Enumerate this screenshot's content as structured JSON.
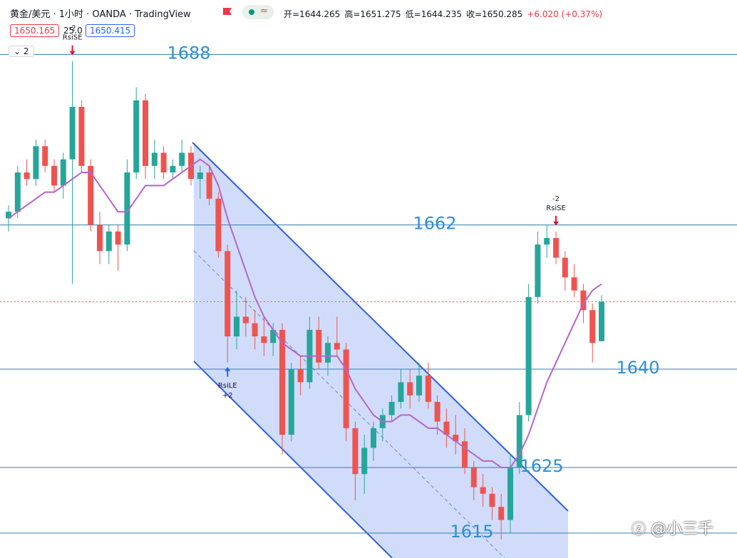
{
  "header": {
    "title": "黄金/美元 · 1小时 · OANDA · TradingView",
    "ohlc": [
      "开=1644.265",
      "高=1651.275",
      "低=1644.235",
      "收=1650.285",
      "+6.020 (+0.37%)"
    ],
    "bid": "1650.165",
    "spread": "25.0",
    "ask": "1650.415",
    "indicators": "2"
  },
  "chart_data": {
    "type": "candlestick",
    "ylim": [
      1611.2,
      1696.3
    ],
    "up_color": "#26a69a",
    "down_color": "#ef5350",
    "ma_color": "#b565c8",
    "open": [
      1663,
      1664,
      1670,
      1669,
      1674,
      1671,
      1668,
      1672,
      1680,
      1671,
      1662,
      1658,
      1661,
      1659,
      1670,
      1681,
      1671,
      1673,
      1670,
      1671,
      1673,
      1669,
      1670,
      1666,
      1658,
      1645,
      1648,
      1647,
      1645,
      1644,
      1646,
      1630,
      1640,
      1638,
      1646,
      1641,
      1644,
      1643,
      1631,
      1624,
      1628,
      1631,
      1633,
      1635,
      1638,
      1636,
      1639,
      1635,
      1632,
      1630,
      1629,
      1625,
      1622,
      1621,
      1619,
      1617,
      1625,
      1633,
      1651,
      1659,
      1660,
      1657,
      1654,
      1652,
      1649,
      1644.265
    ],
    "high": [
      1665,
      1671,
      1672,
      1675,
      1675,
      1672,
      1673,
      1687,
      1681,
      1672,
      1664,
      1662,
      1662,
      1672,
      1683,
      1682,
      1675,
      1674,
      1672,
      1675,
      1674,
      1671,
      1671,
      1667,
      1659,
      1652,
      1651,
      1649,
      1648,
      1647,
      1647,
      1641,
      1642,
      1648,
      1648,
      1645,
      1648,
      1644,
      1632,
      1630,
      1632,
      1634,
      1636,
      1640,
      1640,
      1641,
      1641,
      1636,
      1634,
      1633,
      1631,
      1626,
      1624,
      1622,
      1621,
      1627,
      1635,
      1653,
      1661,
      1662,
      1661,
      1658,
      1656,
      1653,
      1650,
      1651.275
    ],
    "low": [
      1661,
      1663,
      1668,
      1668,
      1670,
      1667,
      1666,
      1653,
      1670,
      1661,
      1656,
      1656,
      1655,
      1658,
      1669,
      1669,
      1669,
      1669,
      1669,
      1670,
      1668,
      1666,
      1665,
      1657,
      1641,
      1643,
      1645,
      1643,
      1642,
      1642,
      1627,
      1629,
      1636,
      1637,
      1640,
      1639,
      1642,
      1629,
      1620,
      1621,
      1626,
      1629,
      1632,
      1634,
      1634,
      1635,
      1634,
      1630,
      1628,
      1627,
      1624,
      1620,
      1619,
      1617,
      1614,
      1615,
      1624,
      1632,
      1650,
      1657,
      1656,
      1652,
      1651,
      1647,
      1641,
      1644.235
    ],
    "close": [
      1664,
      1670,
      1669,
      1674,
      1671,
      1668,
      1672,
      1680,
      1671,
      1662,
      1658,
      1661,
      1659,
      1670,
      1681,
      1671,
      1673,
      1670,
      1671,
      1673,
      1669,
      1670,
      1666,
      1658,
      1645,
      1648,
      1647,
      1645,
      1644,
      1646,
      1630,
      1640,
      1638,
      1646,
      1641,
      1644,
      1643,
      1631,
      1624,
      1628,
      1631,
      1633,
      1635,
      1638,
      1636,
      1639,
      1635,
      1632,
      1630,
      1629,
      1625,
      1622,
      1621,
      1619,
      1617,
      1625,
      1633,
      1651,
      1659,
      1660,
      1657,
      1654,
      1652,
      1649,
      1644,
      1650.285
    ],
    "ma": [
      1663,
      1664,
      1665,
      1666,
      1667,
      1667,
      1668,
      1669,
      1670,
      1670,
      1668,
      1666,
      1664,
      1664,
      1666,
      1668,
      1668,
      1668,
      1669,
      1670,
      1671,
      1672,
      1671,
      1668,
      1663,
      1659,
      1655,
      1651,
      1648,
      1646,
      1644,
      1643,
      1642,
      1642,
      1642,
      1642,
      1642,
      1640,
      1637,
      1635,
      1633,
      1632,
      1632,
      1633,
      1633,
      1632,
      1631,
      1631,
      1630,
      1629,
      1628,
      1627,
      1626,
      1626,
      1625,
      1625,
      1627,
      1630,
      1634,
      1638,
      1641,
      1644,
      1647,
      1650,
      1652,
      1653
    ],
    "levels": [
      1688,
      1662,
      1640,
      1625,
      1615
    ],
    "signals": [
      {
        "index": 7,
        "side": "short",
        "lines": [
          "-2",
          "RsiSE"
        ]
      },
      {
        "index": 60,
        "side": "short",
        "lines": [
          "-2",
          "RsiSE"
        ]
      },
      {
        "index": 24,
        "side": "long",
        "lines": [
          "RsiLE",
          "+2"
        ]
      }
    ]
  },
  "watermark": "@小三千"
}
